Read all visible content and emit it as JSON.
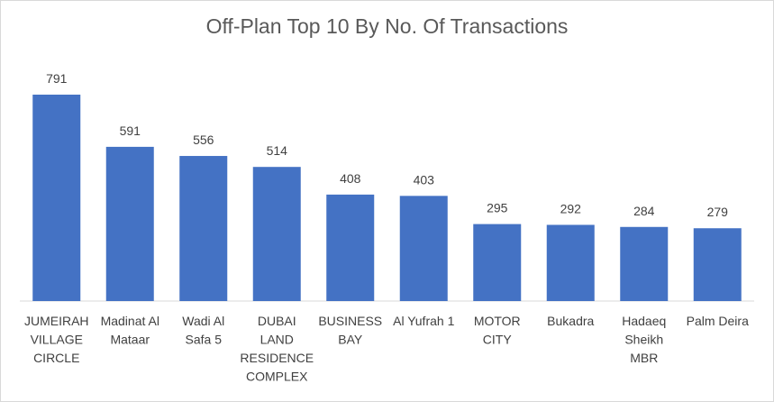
{
  "chart_data": {
    "type": "bar",
    "title": "Off-Plan Top 10 By No. Of Transactions",
    "categories": [
      [
        "JUMEIRAH",
        "VILLAGE",
        "CIRCLE"
      ],
      [
        "Madinat Al",
        "Mataar"
      ],
      [
        "Wadi Al",
        "Safa 5"
      ],
      [
        "DUBAI",
        "LAND",
        "RESIDENCE",
        "COMPLEX"
      ],
      [
        "BUSINESS",
        "BAY"
      ],
      [
        "Al Yufrah 1"
      ],
      [
        "MOTOR",
        "CITY"
      ],
      [
        "Bukadra"
      ],
      [
        "Hadaeq",
        "Sheikh",
        "MBR"
      ],
      [
        "Palm Deira"
      ]
    ],
    "values": [
      791,
      591,
      556,
      514,
      408,
      403,
      295,
      292,
      284,
      279
    ],
    "xlabel": "",
    "ylabel": "",
    "ylim": [
      0,
      791
    ],
    "grid": false,
    "data_labels": true,
    "bar_color": "#4472c4"
  }
}
